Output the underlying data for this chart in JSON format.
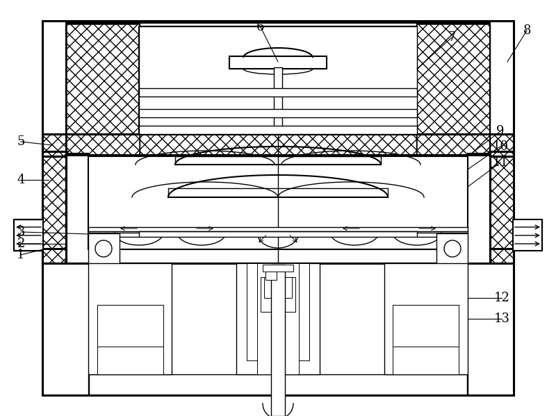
{
  "bg_color": "#ffffff",
  "line_color": "#000000",
  "fig_width": 8.0,
  "fig_height": 5.99
}
